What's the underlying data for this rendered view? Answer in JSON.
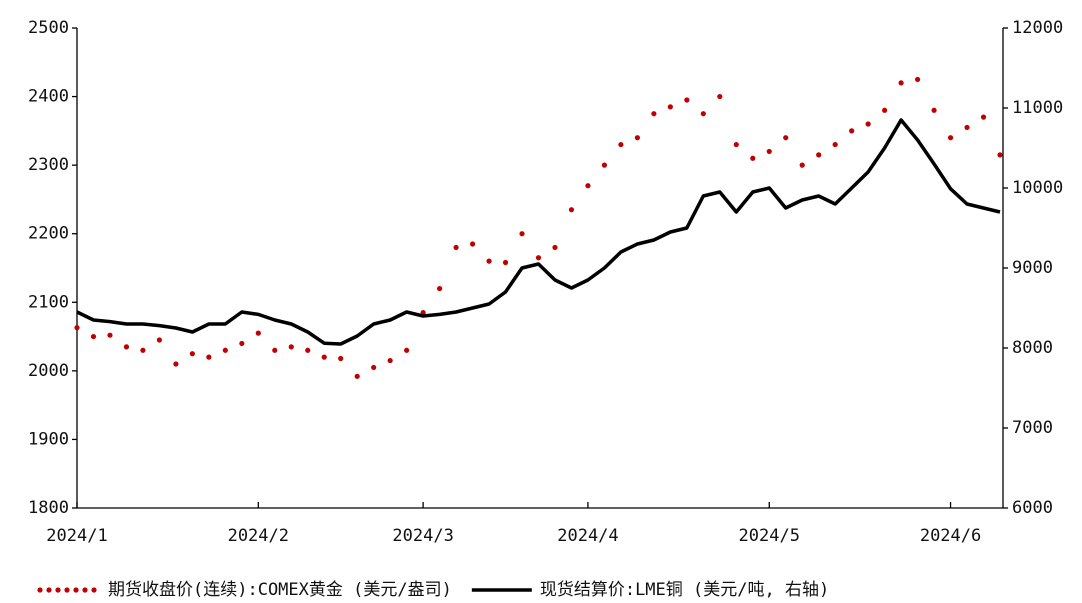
{
  "chart_data": {
    "type": "line",
    "categories": [
      "2024/1",
      null,
      null,
      null,
      null,
      null,
      null,
      null,
      null,
      null,
      null,
      "2024/2",
      null,
      null,
      null,
      null,
      null,
      null,
      null,
      null,
      null,
      "2024/3",
      null,
      null,
      null,
      null,
      null,
      null,
      null,
      null,
      null,
      "2024/4",
      null,
      null,
      null,
      null,
      null,
      null,
      null,
      null,
      null,
      null,
      "2024/5",
      null,
      null,
      null,
      null,
      null,
      null,
      null,
      null,
      null,
      null,
      "2024/6",
      null,
      null,
      null
    ],
    "series": [
      {
        "name": "期货收盘价(连续):COMEX黄金 (美元/盎司)",
        "color": "#c00000",
        "style": "dotted",
        "values": [
          2063,
          2050,
          2052,
          2035,
          2030,
          2045,
          2010,
          2025,
          2020,
          2030,
          2040,
          2055,
          2030,
          2035,
          2030,
          2020,
          2018,
          1992,
          2005,
          2015,
          2030,
          2085,
          2120,
          2180,
          2185,
          2160,
          2158,
          2200,
          2165,
          2180,
          2235,
          2270,
          2300,
          2330,
          2340,
          2375,
          2385,
          2395,
          2375,
          2400,
          2330,
          2310,
          2320,
          2340,
          2300,
          2315,
          2330,
          2350,
          2360,
          2380,
          2420,
          2425,
          2380,
          2340,
          2355,
          2370,
          2315
        ]
      },
      {
        "name": "现货结算价:LME铜 (美元/吨, 右轴)",
        "color": "#000000",
        "style": "solid",
        "axis": "y2",
        "values": [
          8450,
          8350,
          8330,
          8300,
          8300,
          8280,
          8250,
          8200,
          8300,
          8300,
          8450,
          8420,
          8350,
          8300,
          8200,
          8060,
          8050,
          8150,
          8300,
          8350,
          8450,
          8400,
          8420,
          8450,
          8500,
          8550,
          8700,
          9000,
          9050,
          8850,
          8750,
          8850,
          9000,
          9200,
          9300,
          9350,
          9450,
          9500,
          9900,
          9950,
          9700,
          9950,
          10000,
          9750,
          9850,
          9900,
          9800,
          10000,
          10200,
          10500,
          10850,
          10600,
          10300,
          9990,
          9800,
          9750,
          9700
        ]
      }
    ],
    "ylim": [
      1800,
      2500
    ],
    "yticks": [
      1800,
      1900,
      2000,
      2100,
      2200,
      2300,
      2400,
      2500
    ],
    "y2lim": [
      6000,
      12000
    ],
    "y2ticks": [
      6000,
      7000,
      8000,
      9000,
      10000,
      11000,
      12000
    ],
    "grid": false,
    "legend": "bottom"
  }
}
